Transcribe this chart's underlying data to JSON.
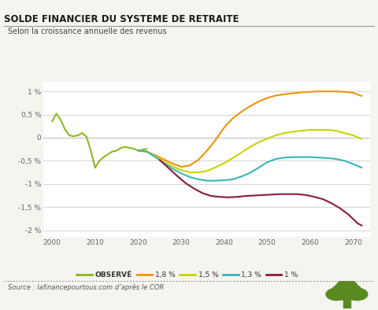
{
  "title": "SOLDE FINANCIER DU SYSTEME DE RETRAITE",
  "subtitle": "Selon la croissance annuelle des revenus",
  "source": "Source : lafinancepourtous.com d’après le COR",
  "bg_color": "#f5f4ef",
  "plot_bg_color": "#ffffff",
  "ylim": [
    -2.15,
    1.2
  ],
  "yticks": [
    -2.0,
    -1.5,
    -1.0,
    -0.5,
    0.0,
    0.5,
    1.0
  ],
  "ytick_labels": [
    "-2 %",
    "-1,5 %",
    "-1 %",
    "-0,5 %",
    "0",
    "0,5 %",
    "1 %"
  ],
  "xlim": [
    1998,
    2074
  ],
  "xticks": [
    2000,
    2010,
    2020,
    2030,
    2040,
    2050,
    2060,
    2070
  ],
  "series": {
    "observe": {
      "label": "OBSERVÉ",
      "color": "#8ab820",
      "x": [
        2000,
        2001,
        2002,
        2003,
        2004,
        2005,
        2006,
        2007,
        2008,
        2009,
        2010,
        2011,
        2012,
        2013,
        2014,
        2015,
        2016,
        2017,
        2018,
        2019,
        2020,
        2021,
        2022
      ],
      "y": [
        0.35,
        0.52,
        0.38,
        0.18,
        0.05,
        0.03,
        0.05,
        0.1,
        0.02,
        -0.28,
        -0.65,
        -0.5,
        -0.42,
        -0.36,
        -0.3,
        -0.28,
        -0.22,
        -0.2,
        -0.22,
        -0.24,
        -0.28,
        -0.26,
        -0.24
      ]
    },
    "r18": {
      "label": "1,8 %",
      "color": "#f0920a",
      "x": [
        2020,
        2022,
        2024,
        2026,
        2028,
        2030,
        2032,
        2034,
        2036,
        2038,
        2040,
        2042,
        2044,
        2046,
        2048,
        2050,
        2052,
        2054,
        2056,
        2058,
        2060,
        2062,
        2064,
        2066,
        2068,
        2070,
        2072
      ],
      "y": [
        -0.28,
        -0.3,
        -0.38,
        -0.47,
        -0.56,
        -0.63,
        -0.6,
        -0.48,
        -0.28,
        -0.05,
        0.22,
        0.42,
        0.56,
        0.68,
        0.78,
        0.86,
        0.91,
        0.94,
        0.96,
        0.98,
        0.99,
        1.0,
        1.0,
        1.0,
        0.99,
        0.97,
        0.9
      ]
    },
    "r15": {
      "label": "1,5 %",
      "color": "#c8d400",
      "x": [
        2020,
        2022,
        2024,
        2026,
        2028,
        2030,
        2032,
        2034,
        2036,
        2038,
        2040,
        2042,
        2044,
        2046,
        2048,
        2050,
        2052,
        2054,
        2056,
        2058,
        2060,
        2062,
        2064,
        2066,
        2068,
        2070,
        2072
      ],
      "y": [
        -0.28,
        -0.3,
        -0.4,
        -0.52,
        -0.62,
        -0.7,
        -0.75,
        -0.75,
        -0.72,
        -0.64,
        -0.55,
        -0.44,
        -0.32,
        -0.2,
        -0.1,
        -0.02,
        0.05,
        0.1,
        0.13,
        0.15,
        0.17,
        0.17,
        0.17,
        0.15,
        0.1,
        0.05,
        -0.03
      ]
    },
    "r13": {
      "label": "1,3 %",
      "color": "#3ab5b8",
      "x": [
        2020,
        2022,
        2024,
        2026,
        2028,
        2030,
        2032,
        2034,
        2036,
        2038,
        2040,
        2042,
        2044,
        2046,
        2048,
        2050,
        2052,
        2054,
        2056,
        2058,
        2060,
        2062,
        2064,
        2066,
        2068,
        2070,
        2072
      ],
      "y": [
        -0.28,
        -0.3,
        -0.42,
        -0.55,
        -0.67,
        -0.77,
        -0.85,
        -0.9,
        -0.93,
        -0.93,
        -0.92,
        -0.9,
        -0.84,
        -0.76,
        -0.65,
        -0.53,
        -0.46,
        -0.43,
        -0.42,
        -0.42,
        -0.42,
        -0.43,
        -0.44,
        -0.46,
        -0.5,
        -0.57,
        -0.65
      ]
    },
    "r10": {
      "label": "1 %",
      "color": "#8b1a3a",
      "x": [
        2025,
        2027,
        2029,
        2031,
        2033,
        2035,
        2037,
        2039,
        2041,
        2043,
        2045,
        2047,
        2049,
        2051,
        2053,
        2055,
        2057,
        2059,
        2061,
        2063,
        2065,
        2067,
        2069,
        2071,
        2072
      ],
      "y": [
        -0.48,
        -0.65,
        -0.82,
        -0.98,
        -1.1,
        -1.2,
        -1.26,
        -1.28,
        -1.29,
        -1.28,
        -1.26,
        -1.25,
        -1.24,
        -1.23,
        -1.22,
        -1.22,
        -1.22,
        -1.24,
        -1.28,
        -1.33,
        -1.42,
        -1.53,
        -1.67,
        -1.85,
        -1.9
      ]
    }
  }
}
